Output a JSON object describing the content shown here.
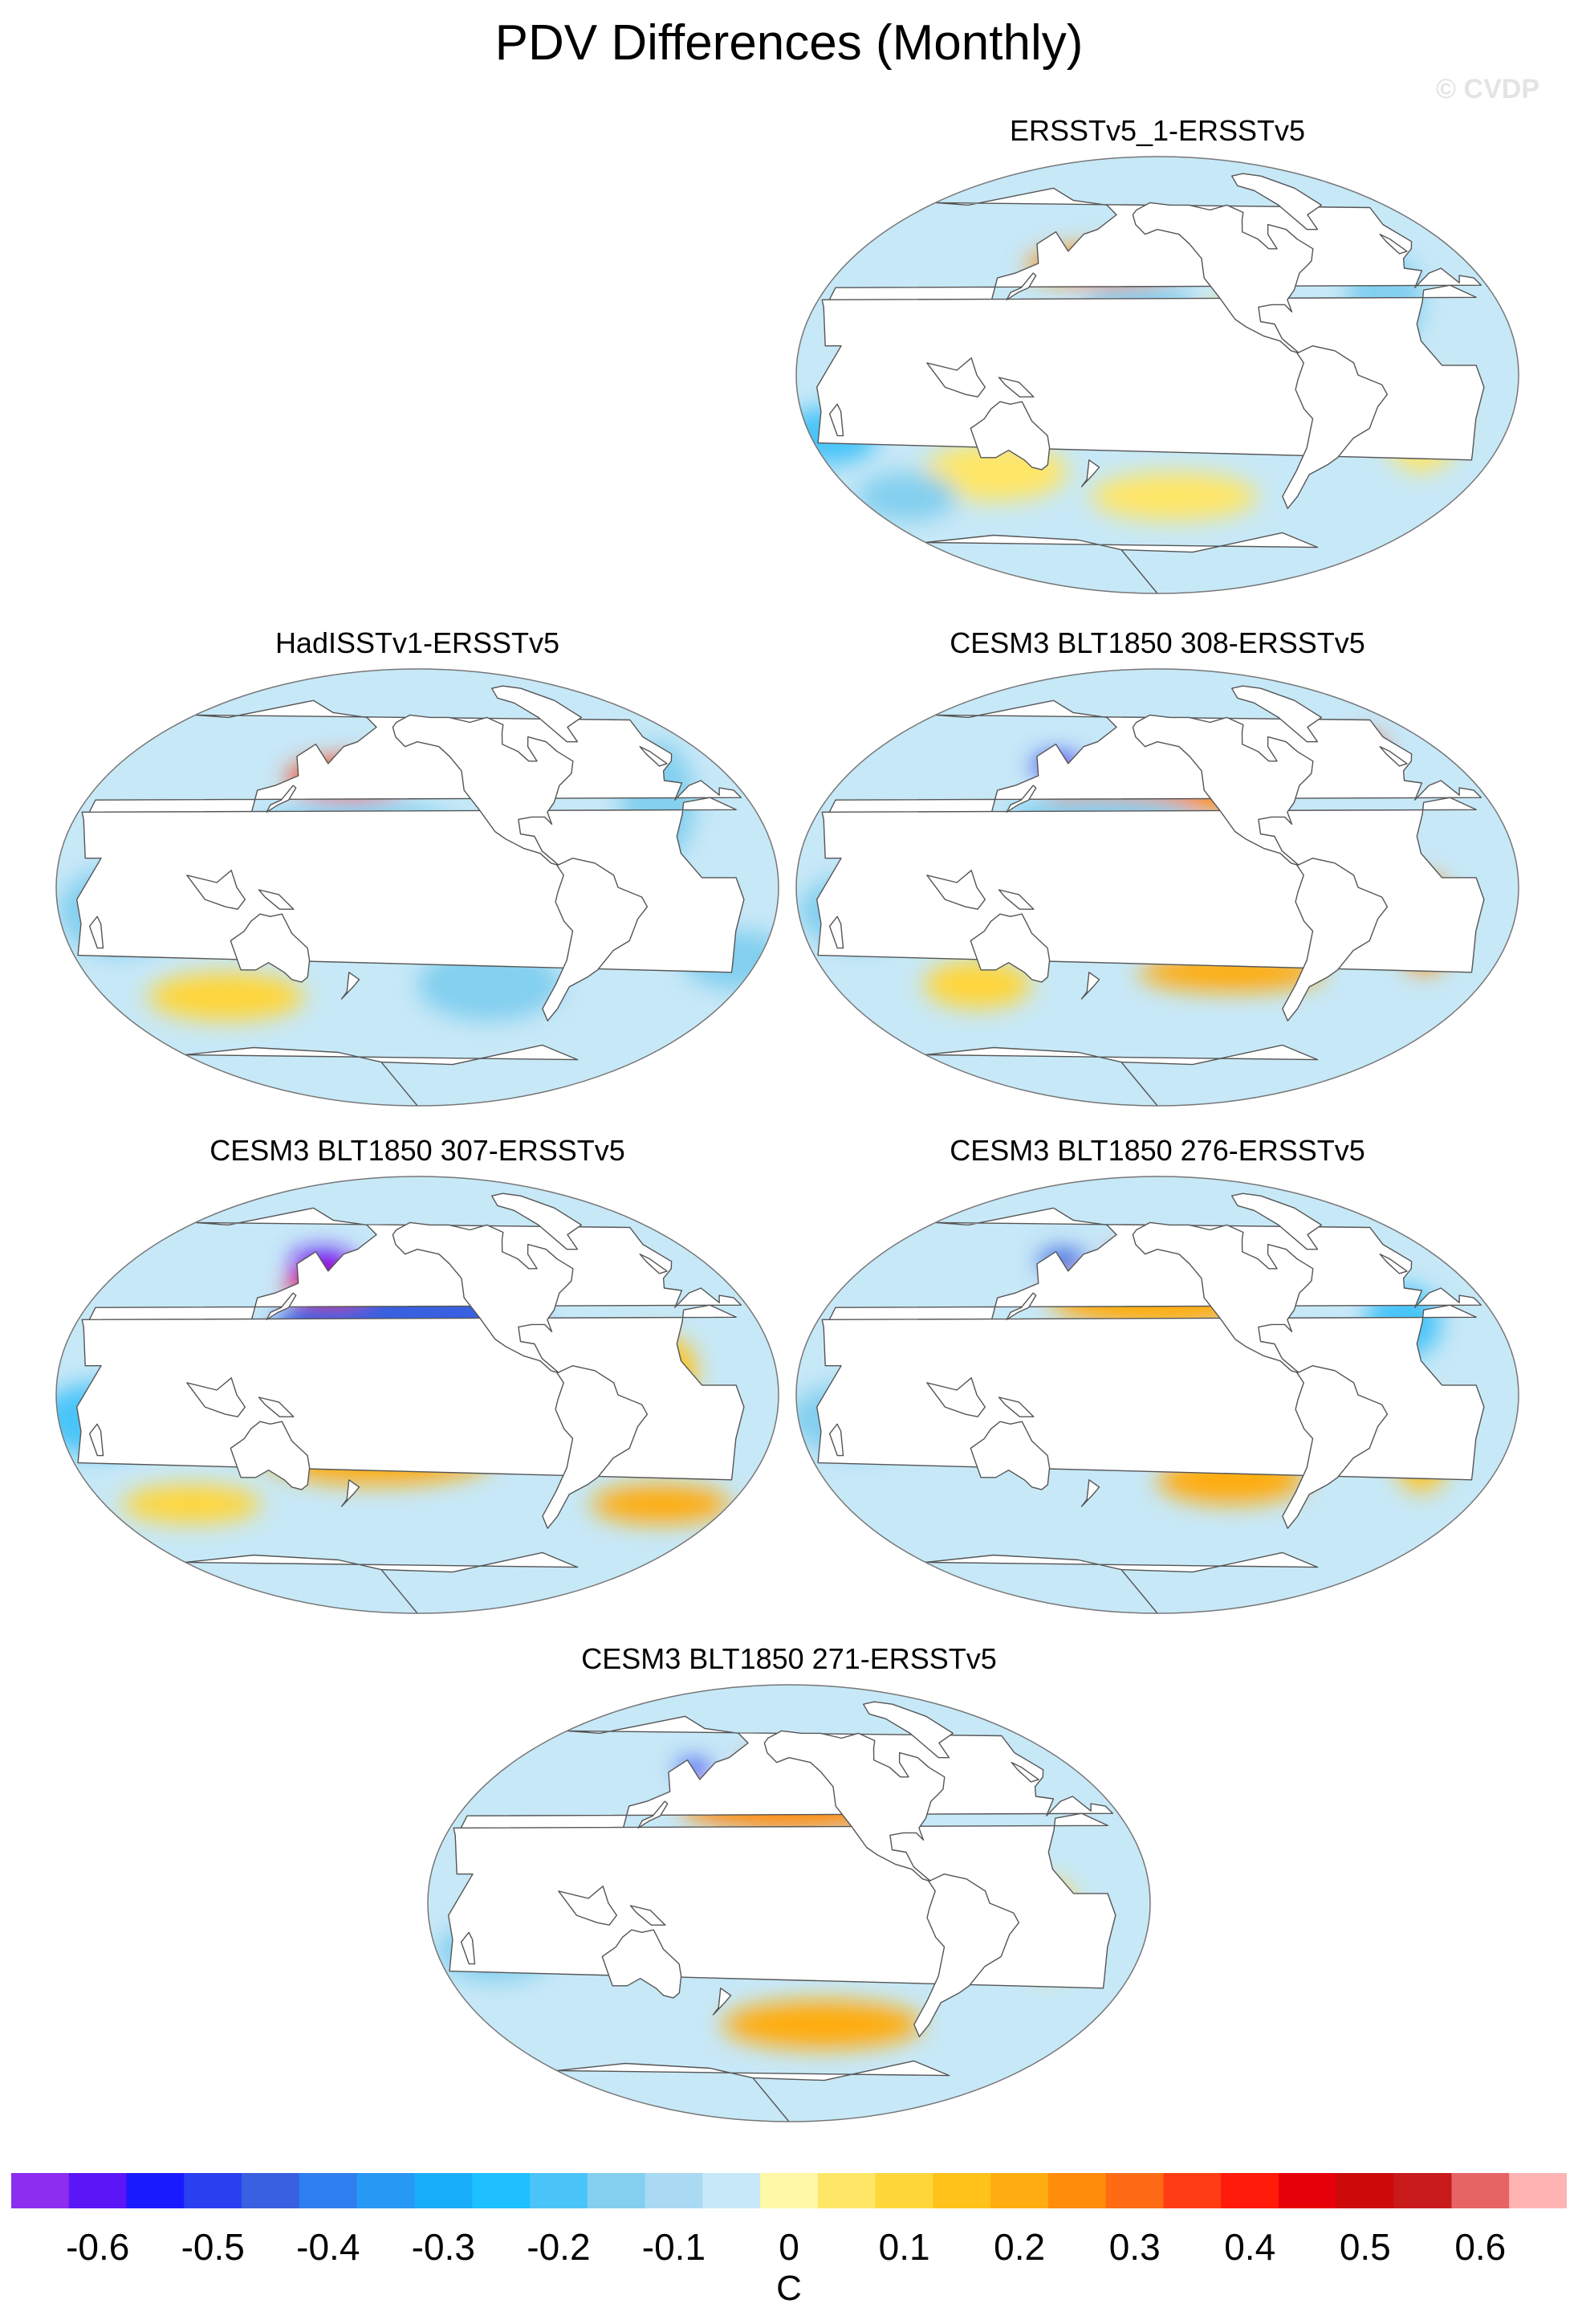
{
  "title": "PDV Differences (Monthly)",
  "watermark": "© CVDP",
  "panels": [
    {
      "title": "ERSSTv5_1-ERSSTv5",
      "blobs": [
        {
          "lon": 180,
          "lat": 45,
          "rx": 45,
          "ry": 8,
          "v": 0.25
        },
        {
          "lon": 200,
          "lat": 30,
          "rx": 30,
          "ry": 7,
          "v": -0.12
        },
        {
          "lon": 250,
          "lat": 20,
          "rx": 25,
          "ry": 10,
          "v": 0.08
        },
        {
          "lon": 200,
          "lat": -10,
          "rx": 35,
          "ry": 10,
          "v": 0.06
        },
        {
          "lon": 120,
          "lat": -40,
          "rx": 40,
          "ry": 12,
          "v": 0.08
        },
        {
          "lon": 60,
          "lat": -50,
          "rx": 30,
          "ry": 10,
          "v": -0.15
        },
        {
          "lon": 40,
          "lat": -25,
          "rx": 25,
          "ry": 12,
          "v": -0.18
        },
        {
          "lon": 220,
          "lat": -50,
          "rx": 50,
          "ry": 10,
          "v": 0.08
        },
        {
          "lon": 330,
          "lat": 30,
          "rx": 20,
          "ry": 20,
          "v": -0.12
        },
        {
          "lon": 345,
          "lat": -20,
          "rx": 20,
          "ry": 20,
          "v": 0.06
        }
      ]
    },
    {
      "title": "HadISSTv1-ERSSTv5",
      "blobs": [
        {
          "lon": 170,
          "lat": 45,
          "rx": 35,
          "ry": 8,
          "v": 0.38
        },
        {
          "lon": 215,
          "lat": 2,
          "rx": 45,
          "ry": 6,
          "v": 0.12
        },
        {
          "lon": 180,
          "lat": 25,
          "rx": 50,
          "ry": 10,
          "v": -0.12
        },
        {
          "lon": 100,
          "lat": -45,
          "rx": 45,
          "ry": 10,
          "v": 0.1
        },
        {
          "lon": 60,
          "lat": -10,
          "rx": 30,
          "ry": 18,
          "v": -0.12
        },
        {
          "lon": 250,
          "lat": -40,
          "rx": 40,
          "ry": 15,
          "v": -0.12
        },
        {
          "lon": 340,
          "lat": 35,
          "rx": 20,
          "ry": 25,
          "v": -0.15
        },
        {
          "lon": 20,
          "lat": -30,
          "rx": 30,
          "ry": 12,
          "v": -0.12
        }
      ]
    },
    {
      "title": "CESM3 BLT1850 308-ERSSTv5",
      "blobs": [
        {
          "lon": 210,
          "lat": 40,
          "rx": 60,
          "ry": 10,
          "v": 0.28
        },
        {
          "lon": 180,
          "lat": 30,
          "rx": 50,
          "ry": 8,
          "v": -0.15
        },
        {
          "lon": 220,
          "lat": 5,
          "rx": 80,
          "ry": 8,
          "v": 0.2
        },
        {
          "lon": 200,
          "lat": -15,
          "rx": 60,
          "ry": 8,
          "v": -0.12
        },
        {
          "lon": 250,
          "lat": -35,
          "rx": 50,
          "ry": 8,
          "v": 0.22
        },
        {
          "lon": 150,
          "lat": 50,
          "rx": 15,
          "ry": 5,
          "v": -0.5
        },
        {
          "lon": 110,
          "lat": -40,
          "rx": 30,
          "ry": 10,
          "v": 0.12
        },
        {
          "lon": 60,
          "lat": -10,
          "rx": 30,
          "ry": 15,
          "v": -0.15
        },
        {
          "lon": 345,
          "lat": -15,
          "rx": 15,
          "ry": 20,
          "v": 0.3
        },
        {
          "lon": 340,
          "lat": 55,
          "rx": 12,
          "ry": 8,
          "v": 0.35
        }
      ]
    },
    {
      "title": "CESM3 BLT1850 307-ERSSTv5",
      "blobs": [
        {
          "lon": 205,
          "lat": 25,
          "rx": 70,
          "ry": 22,
          "v": -0.45
        },
        {
          "lon": 160,
          "lat": 45,
          "rx": 25,
          "ry": 7,
          "v": 0.5
        },
        {
          "lon": 150,
          "lat": 55,
          "rx": 20,
          "ry": 5,
          "v": -0.6
        },
        {
          "lon": 190,
          "lat": -25,
          "rx": 60,
          "ry": 12,
          "v": 0.2
        },
        {
          "lon": 150,
          "lat": 0,
          "rx": 40,
          "ry": 10,
          "v": -0.15
        },
        {
          "lon": 80,
          "lat": -45,
          "rx": 40,
          "ry": 8,
          "v": 0.12
        },
        {
          "lon": 350,
          "lat": -45,
          "rx": 40,
          "ry": 8,
          "v": 0.22
        },
        {
          "lon": 50,
          "lat": -10,
          "rx": 30,
          "ry": 15,
          "v": -0.18
        },
        {
          "lon": 330,
          "lat": 10,
          "rx": 20,
          "ry": 15,
          "v": 0.15
        }
      ]
    },
    {
      "title": "CESM3 BLT1850 276-ERSSTv5",
      "blobs": [
        {
          "lon": 210,
          "lat": 40,
          "rx": 60,
          "ry": 12,
          "v": 0.22
        },
        {
          "lon": 195,
          "lat": 55,
          "rx": 15,
          "ry": 5,
          "v": 0.5
        },
        {
          "lon": 150,
          "lat": 55,
          "rx": 15,
          "ry": 5,
          "v": -0.45
        },
        {
          "lon": 220,
          "lat": 5,
          "rx": 80,
          "ry": 8,
          "v": 0.25
        },
        {
          "lon": 200,
          "lat": -15,
          "rx": 60,
          "ry": 8,
          "v": -0.15
        },
        {
          "lon": 250,
          "lat": -35,
          "rx": 40,
          "ry": 10,
          "v": 0.2
        },
        {
          "lon": 60,
          "lat": -10,
          "rx": 35,
          "ry": 15,
          "v": -0.12
        },
        {
          "lon": 340,
          "lat": 30,
          "rx": 20,
          "ry": 15,
          "v": -0.2
        },
        {
          "lon": 345,
          "lat": -20,
          "rx": 15,
          "ry": 20,
          "v": 0.15
        }
      ]
    },
    {
      "title": "CESM3 BLT1850 271-ERSSTv5",
      "blobs": [
        {
          "lon": 210,
          "lat": 40,
          "rx": 60,
          "ry": 10,
          "v": 0.25
        },
        {
          "lon": 195,
          "lat": 55,
          "rx": 15,
          "ry": 5,
          "v": 0.35
        },
        {
          "lon": 150,
          "lat": 55,
          "rx": 10,
          "ry": 4,
          "v": -0.5
        },
        {
          "lon": 220,
          "lat": 3,
          "rx": 80,
          "ry": 7,
          "v": 0.2
        },
        {
          "lon": 200,
          "lat": -15,
          "rx": 60,
          "ry": 8,
          "v": -0.18
        },
        {
          "lon": 230,
          "lat": -50,
          "rx": 60,
          "ry": 10,
          "v": 0.22
        },
        {
          "lon": 90,
          "lat": 0,
          "rx": 20,
          "ry": 15,
          "v": -0.2
        },
        {
          "lon": 60,
          "lat": -20,
          "rx": 30,
          "ry": 12,
          "v": -0.15
        },
        {
          "lon": 340,
          "lat": -10,
          "rx": 15,
          "ry": 20,
          "v": 0.12
        }
      ]
    }
  ],
  "colorbar": {
    "unit": "C",
    "colors": [
      "#8b2ef0",
      "#5a16f5",
      "#1a1aff",
      "#2a40f0",
      "#3860e0",
      "#2f7ef0",
      "#2898f5",
      "#18adf8",
      "#1ec0ff",
      "#4ac4f8",
      "#82cfef",
      "#a9d9f3",
      "#c7e8f7",
      "#fff8a6",
      "#ffe666",
      "#ffd63a",
      "#ffc21a",
      "#ffac10",
      "#ff8c0a",
      "#ff6b14",
      "#ff3c14",
      "#ff1a0a",
      "#e6000a",
      "#cc0a0a",
      "#c81a1a",
      "#e66464",
      "#ffb4b4"
    ],
    "tick_labels": [
      "-0.6",
      "-0.5",
      "-0.4",
      "-0.3",
      "-0.2",
      "-0.1",
      "0",
      "0.1",
      "0.2",
      "0.3",
      "0.4",
      "0.5",
      "0.6"
    ]
  }
}
